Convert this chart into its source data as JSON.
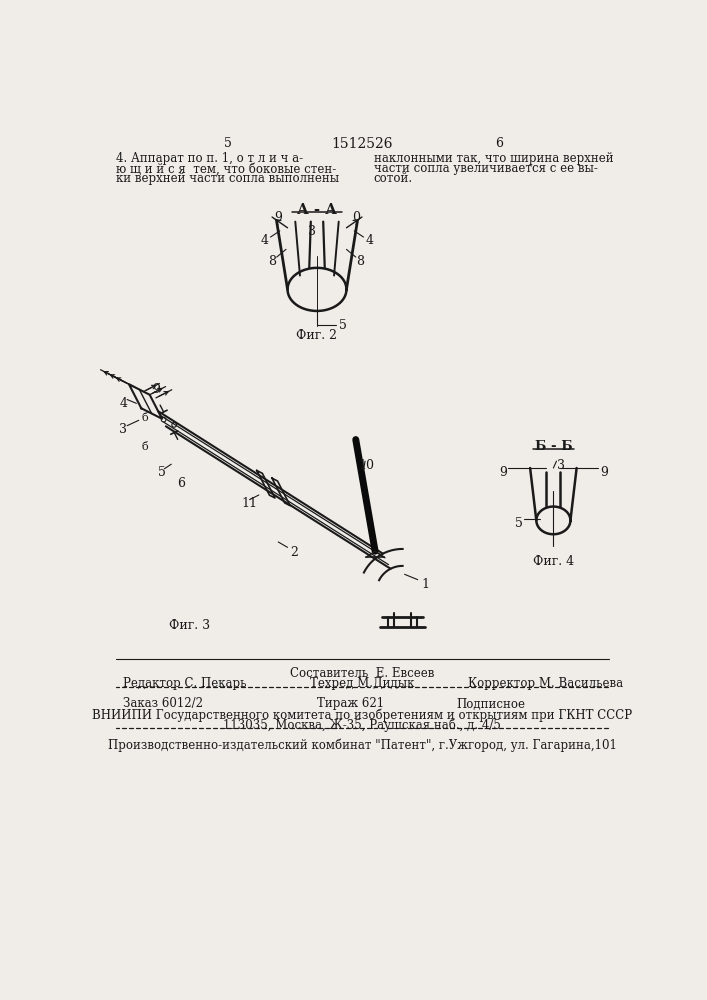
{
  "page_number_left": "5",
  "page_header_center": "1512526",
  "page_number_right": "6",
  "patent_text_left": "4. Аппарат по п. 1, о т л и ч а-\nю щ и й с я  тем, что боковые стен-\nки верхней части сопла выполнены",
  "patent_text_right": "наклонными так, что ширина верхней\nчасти сопла увеличивается с ее вы-\nсотой.",
  "fig2_label": "А - А",
  "fig2_caption": "Фиг. 2",
  "fig3_caption": "Фиг. 3",
  "fig4_label": "Б - Б",
  "fig4_caption": "Фиг. 4",
  "footer_composer": "Составитель  Е. Евсеев",
  "footer_editor": "Редактор С. Пекарь",
  "footer_techred": "Техред М.Дидык",
  "footer_corrector": "Корректор М. Васильева",
  "footer_order": "Заказ 6012/2",
  "footer_tirazh": "Тираж 621",
  "footer_podpisnoe": "Подписное",
  "footer_vniiipi": "ВНИИПИ Государственного комитета по изобретениям и открытиям при ГКНТ СССР",
  "footer_address": "113035, Москва, Ж-35, Раушская наб., д. 4/5",
  "footer_kombinat": "Производственно-издательский комбинат \"Патент\", г.Ужгород, ул. Гагарина,101",
  "bg_color": "#f0ede8",
  "text_color": "#1a1a1a",
  "line_color": "#1a1a1a"
}
